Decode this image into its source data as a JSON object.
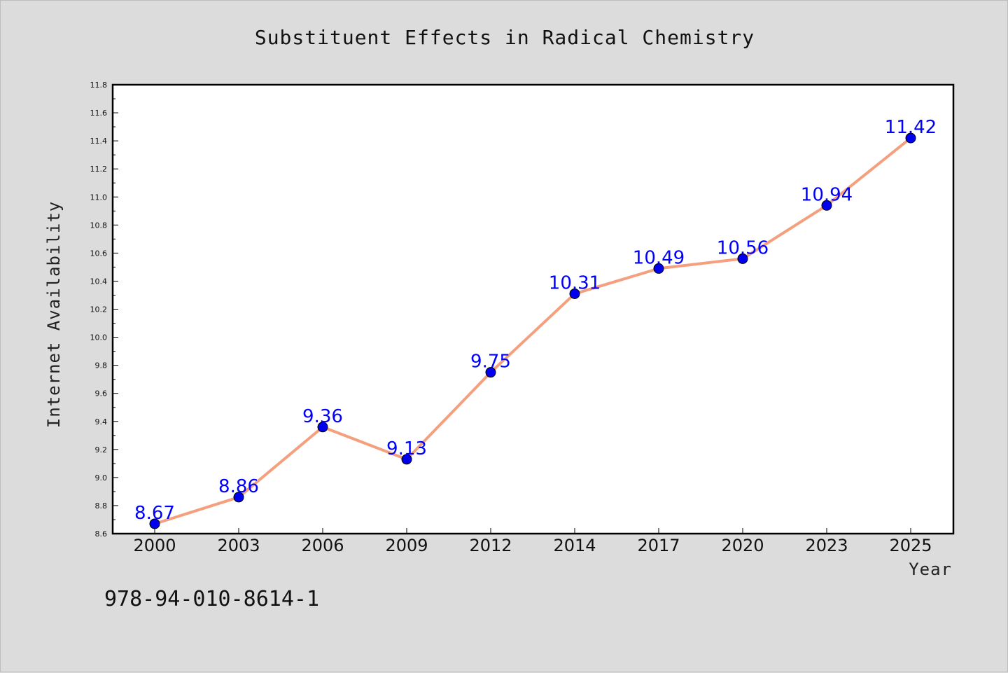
{
  "chart_data": {
    "type": "line",
    "title": "Substituent Effects in Radical Chemistry",
    "xlabel": "Year",
    "ylabel": "Internet Availability",
    "categories": [
      "2000",
      "2003",
      "2006",
      "2009",
      "2012",
      "2014",
      "2017",
      "2020",
      "2023",
      "2025"
    ],
    "series": [
      {
        "values": [
          8.67,
          8.86,
          9.36,
          9.13,
          9.75,
          10.31,
          10.49,
          10.56,
          10.94,
          11.42
        ]
      }
    ],
    "data_labels": [
      "8.67",
      "8.86",
      "9.36",
      "9.13",
      "9.75",
      "10.31",
      "10.49",
      "10.56",
      "10.94",
      "11.42"
    ],
    "ylim": [
      8.6,
      11.8
    ],
    "yticks": [
      "8.6",
      "8.8",
      "9.0",
      "9.2",
      "9.4",
      "9.6",
      "9.8",
      "10.0",
      "10.2",
      "10.4",
      "10.6",
      "10.8",
      "11.0",
      "11.2",
      "11.4",
      "11.6",
      "11.8"
    ],
    "grid": false,
    "legend": "none",
    "colors": {
      "line": "#f4a07e",
      "marker": "#0000ee",
      "label": "#0000ff"
    }
  },
  "footer_text": "978-94-010-8614-1"
}
